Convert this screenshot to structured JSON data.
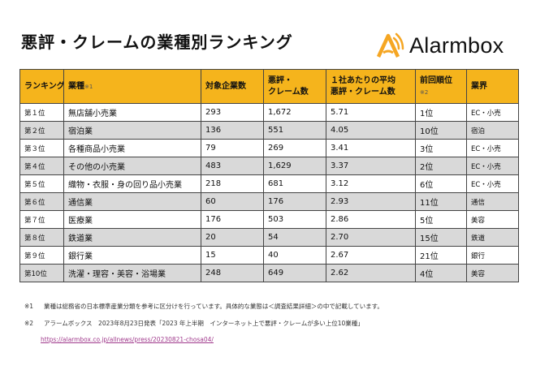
{
  "title": "悪評・クレームの業種別ランキング",
  "logo": {
    "text": "Alarmbox",
    "icon": "alarmbox-logo-icon",
    "color": "#f5a623"
  },
  "table": {
    "header_color": "#f5b41c",
    "headers": {
      "rank": "ランキング",
      "industry": "業種",
      "industry_note": "※1",
      "companies": "対象企業数",
      "complaints_1": "悪評・",
      "complaints_2": "クレーム数",
      "per_company_1": "１社あたりの平均",
      "per_company_2": "悪評・クレーム数",
      "prev_1": "前回順位",
      "prev_note": "※2",
      "sector": "業界"
    },
    "rows": [
      {
        "rank": "第１位",
        "industry": "無店舗小売業",
        "companies": "293",
        "complaints": "1,672",
        "avg": "5.71",
        "prev": "1位",
        "sector": "EC・小売"
      },
      {
        "rank": "第２位",
        "industry": "宿泊業",
        "companies": "136",
        "complaints": "551",
        "avg": "4.05",
        "prev": "10位",
        "sector": "宿泊"
      },
      {
        "rank": "第３位",
        "industry": "各種商品小売業",
        "companies": "79",
        "complaints": "269",
        "avg": "3.41",
        "prev": "3位",
        "sector": "EC・小売"
      },
      {
        "rank": "第４位",
        "industry": "その他の小売業",
        "companies": "483",
        "complaints": "1,629",
        "avg": "3.37",
        "prev": "2位",
        "sector": "EC・小売"
      },
      {
        "rank": "第５位",
        "industry": "織物・衣服・身の回り品小売業",
        "companies": "218",
        "complaints": "681",
        "avg": "3.12",
        "prev": "6位",
        "sector": "EC・小売"
      },
      {
        "rank": "第６位",
        "industry": "通信業",
        "companies": "60",
        "complaints": "176",
        "avg": "2.93",
        "prev": "11位",
        "sector": "通信"
      },
      {
        "rank": "第７位",
        "industry": "医療業",
        "companies": "176",
        "complaints": "503",
        "avg": "2.86",
        "prev": "5位",
        "sector": "美容"
      },
      {
        "rank": "第８位",
        "industry": "鉄道業",
        "companies": "20",
        "complaints": "54",
        "avg": "2.70",
        "prev": "15位",
        "sector": "鉄道"
      },
      {
        "rank": "第９位",
        "industry": "銀行業",
        "companies": "15",
        "complaints": "40",
        "avg": "2.67",
        "prev": "21位",
        "sector": "銀行"
      },
      {
        "rank": "第10位",
        "industry": "洗濯・理容・美容・浴場業",
        "companies": "248",
        "complaints": "649",
        "avg": "2.62",
        "prev": "4位",
        "sector": "美容"
      }
    ]
  },
  "footnotes": {
    "note1_mark": "※1",
    "note1_text": "業種は総務省の日本標準産業分類を参考に区分けを行っています。具体的な業態は＜調査結果詳細＞の中で記載しています。",
    "note2_mark": "※2",
    "note2_text": "アラームボックス　2023年8月23日発表「2023 年上半期　インターネット上で悪評・クレームが多い上位10業種」",
    "link": "https://alarmbox.co.jp/allnews/press/20230821-chosa04/"
  }
}
